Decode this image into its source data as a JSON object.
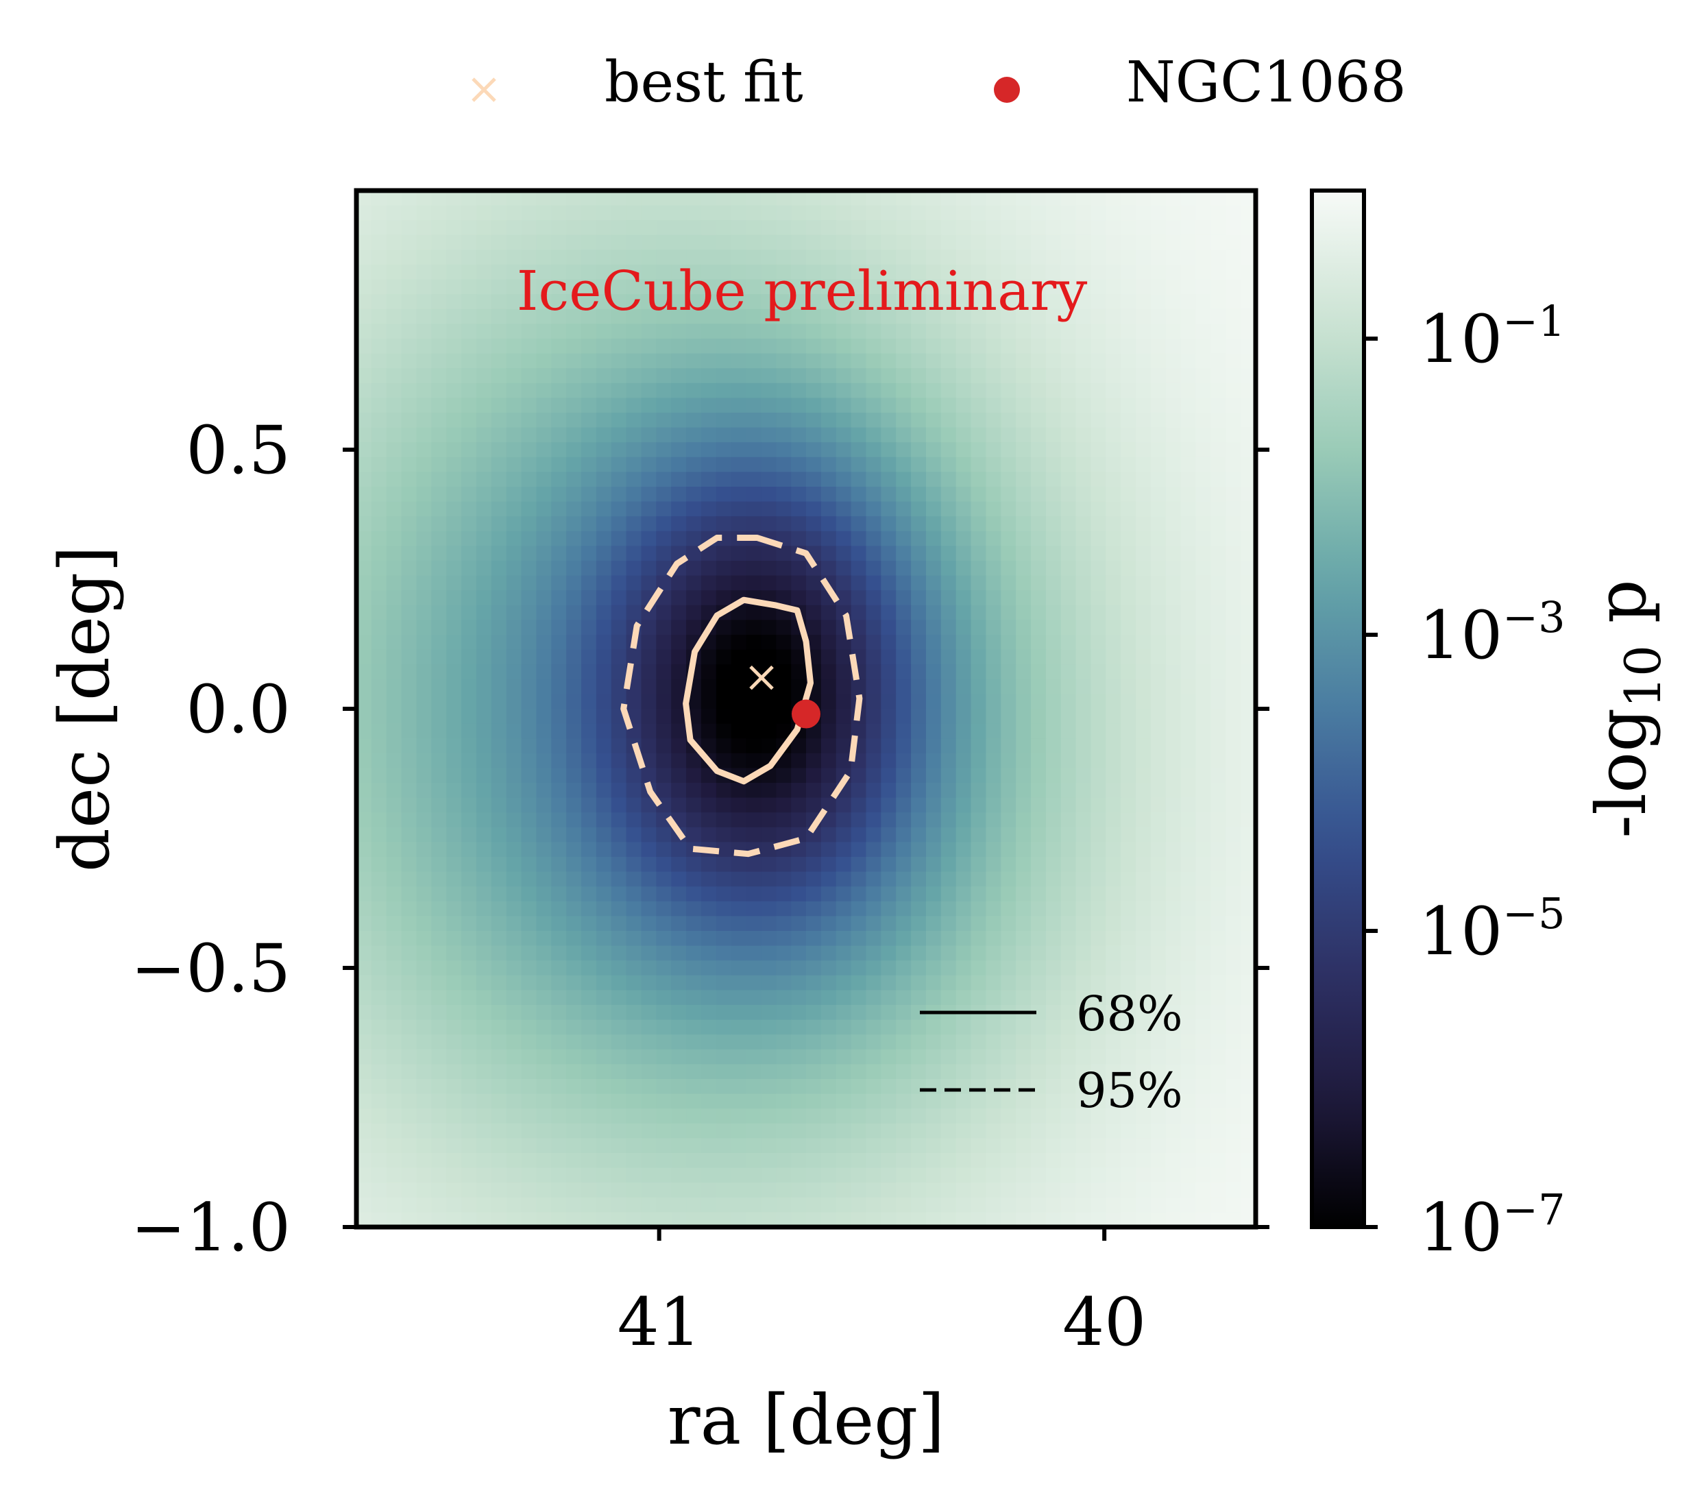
{
  "chart_data": {
    "type": "heatmap",
    "title": "",
    "annotation": "IceCube preliminary",
    "annotation_color": "#e41a1c",
    "xlabel": "ra [deg]",
    "ylabel": "dec [deg]",
    "x_axis_inverted": true,
    "xlim": [
      41.68,
      39.66
    ],
    "ylim": [
      -1.0,
      1.0
    ],
    "x_ticks": [
      41,
      40
    ],
    "x_tick_labels": [
      "41",
      "40"
    ],
    "y_ticks": [
      0.5,
      0.0,
      -0.5,
      -1.0
    ],
    "y_tick_labels": [
      "0.5",
      "0.0",
      "−0.5",
      "−1.0"
    ],
    "colorbar": {
      "label": "-log10 p",
      "label_main": "-log",
      "label_sub": "10",
      "label_tail": " p",
      "scale": "log",
      "range": [
        1e-07,
        1.0
      ],
      "ticks": [
        0.1,
        0.001,
        1e-05,
        1e-07
      ],
      "tick_bases": [
        "10",
        "10",
        "10",
        "10"
      ],
      "tick_exponents": [
        "−1",
        "−3",
        "−5",
        "−7"
      ],
      "colormap": [
        "#000000",
        "#1f1a3d",
        "#2e3266",
        "#35508f",
        "#4a7ca1",
        "#66a5a8",
        "#9acbb7",
        "#cde4d4",
        "#f7faf7"
      ]
    },
    "best_fit": {
      "ra": 40.77,
      "dec": 0.06
    },
    "ngc1068": {
      "ra": 40.67,
      "dec": -0.01
    },
    "contour_68": {
      "label": "68%",
      "line_style": "solid",
      "color": "#fcd9b8",
      "points": [
        [
          40.74,
          0.2
        ],
        [
          40.69,
          0.19
        ],
        [
          40.67,
          0.13
        ],
        [
          40.66,
          0.05
        ],
        [
          40.69,
          -0.04
        ],
        [
          40.75,
          -0.11
        ],
        [
          40.81,
          -0.14
        ],
        [
          40.87,
          -0.12
        ],
        [
          40.93,
          -0.06
        ],
        [
          40.94,
          0.01
        ],
        [
          40.92,
          0.11
        ],
        [
          40.87,
          0.18
        ],
        [
          40.81,
          0.21
        ]
      ]
    },
    "contour_95": {
      "label": "95%",
      "line_style": "dashed",
      "color": "#fcd9b8",
      "points": [
        [
          40.78,
          0.33
        ],
        [
          40.67,
          0.3
        ],
        [
          40.58,
          0.18
        ],
        [
          40.55,
          0.02
        ],
        [
          40.57,
          -0.12
        ],
        [
          40.67,
          -0.25
        ],
        [
          40.8,
          -0.28
        ],
        [
          40.93,
          -0.27
        ],
        [
          41.02,
          -0.16
        ],
        [
          41.08,
          0.0
        ],
        [
          41.05,
          0.16
        ],
        [
          40.96,
          0.28
        ],
        [
          40.87,
          0.33
        ]
      ]
    },
    "heat_field": [
      {
        "ra": 40.77,
        "dec": 0.04,
        "sigma_ra": 0.24,
        "sigma_dec": 0.3,
        "amp": 3.6
      },
      {
        "ra": 41.1,
        "dec": 0.02,
        "sigma_ra": 0.6,
        "sigma_dec": 0.65,
        "amp": 2.6
      },
      {
        "ra": 40.55,
        "dec": -0.1,
        "sigma_ra": 0.45,
        "sigma_dec": 0.55,
        "amp": 1.2
      }
    ],
    "legend": {
      "position": "top-outside",
      "entries": [
        {
          "label": "best fit",
          "marker": "x",
          "color": "#fcd9b8"
        },
        {
          "label": "NGC1068",
          "marker": "o",
          "color": "#d62728"
        }
      ]
    },
    "contour_legend": {
      "position": "lower-right",
      "entries": [
        {
          "label": "68%",
          "line_style": "solid"
        },
        {
          "label": "95%",
          "line_style": "dashed"
        }
      ]
    }
  }
}
